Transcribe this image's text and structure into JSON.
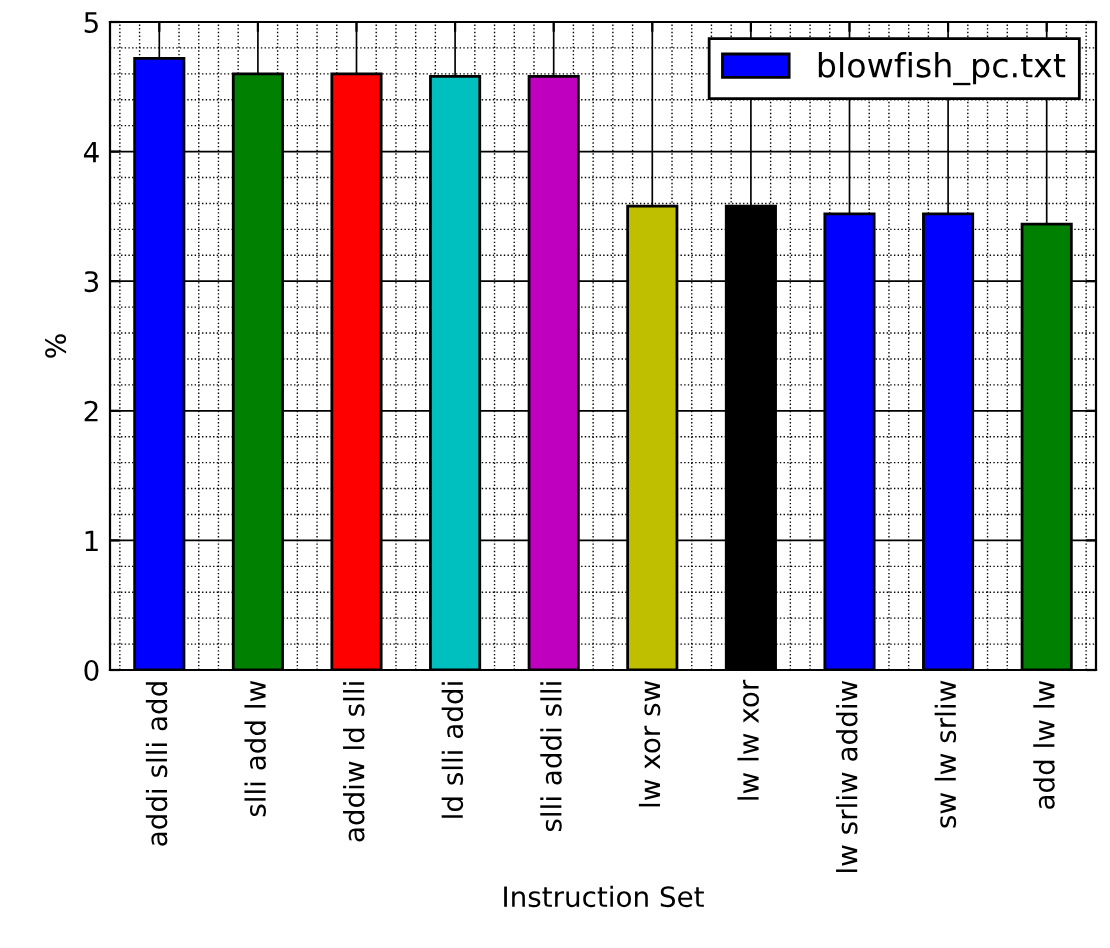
{
  "chart_data": {
    "type": "bar",
    "xlabel": "Instruction Set",
    "ylabel": "%",
    "categories": [
      "addi slli add",
      "slli add lw",
      "addiw ld slli",
      "ld slli addi",
      "slli addi slli",
      "lw xor sw",
      "lw lw xor",
      "lw srliw addiw",
      "sw lw srliw",
      "add lw lw"
    ],
    "series": [
      {
        "name": "blowfish_pc.txt",
        "color": "#0000ff",
        "colors": [
          "#0000ff",
          "#008000",
          "#ff0000",
          "#00bfbf",
          "#bf00bf",
          "#bfbf00",
          "#000000",
          "#0000ff",
          "#0000ff",
          "#008000"
        ],
        "values": [
          4.72,
          4.6,
          4.6,
          4.58,
          4.58,
          3.58,
          3.58,
          3.52,
          3.52,
          3.44
        ]
      }
    ],
    "ylim": [
      0,
      5
    ],
    "yticks": [
      0,
      1,
      2,
      3,
      4,
      5
    ],
    "grid": true,
    "legend": "top right"
  }
}
